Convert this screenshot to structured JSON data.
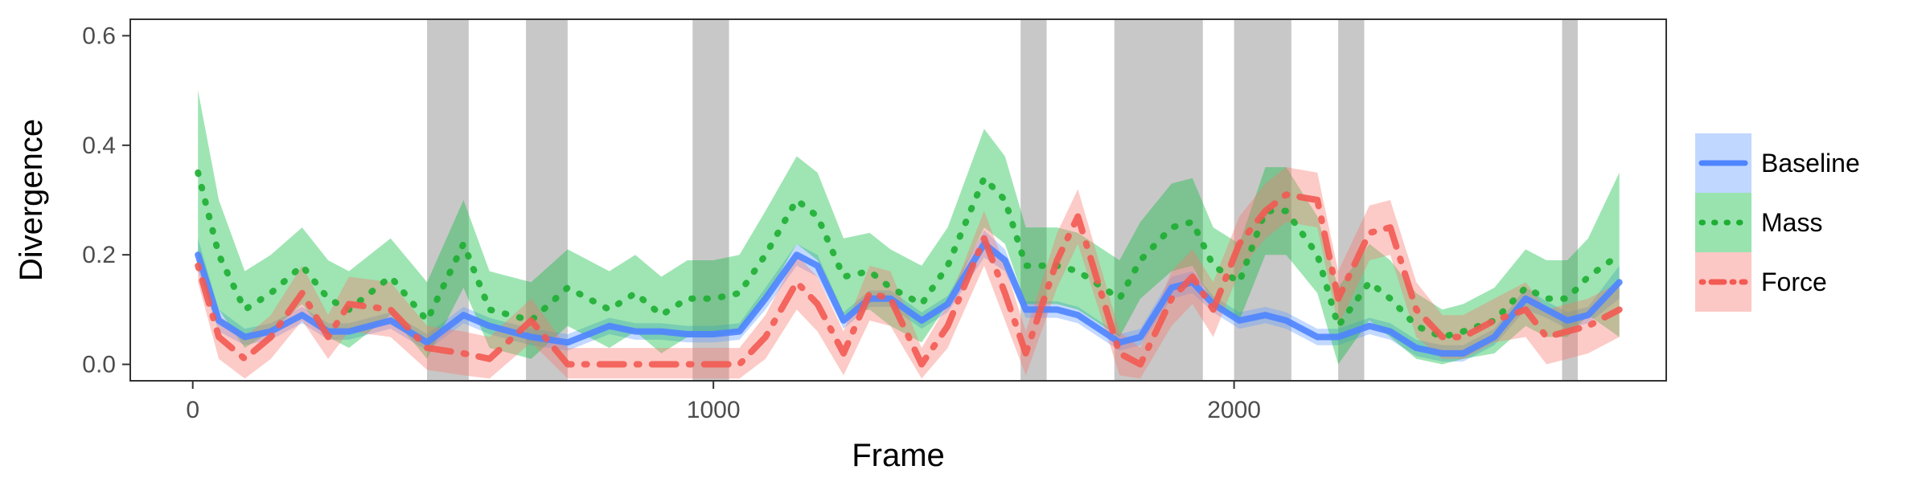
{
  "chart_data": {
    "type": "line",
    "title": "",
    "xlabel": "Frame",
    "ylabel": "Divergence",
    "xlim": [
      -120,
      2830
    ],
    "ylim": [
      -0.03,
      0.63
    ],
    "x_ticks": [
      0,
      1000,
      2000
    ],
    "x_tick_labels": [
      "0",
      "1000",
      "2000"
    ],
    "y_ticks": [
      0.0,
      0.2,
      0.4,
      0.6
    ],
    "y_tick_labels": [
      "0.0",
      "0.2",
      "0.4",
      "0.6"
    ],
    "grid": false,
    "legend": {
      "position": "right"
    },
    "shaded_regions": [
      [
        450,
        530
      ],
      [
        640,
        720
      ],
      [
        960,
        1030
      ],
      [
        1590,
        1640
      ],
      [
        1770,
        1940
      ],
      [
        2000,
        2110
      ],
      [
        2200,
        2250
      ],
      [
        2630,
        2660
      ]
    ],
    "series": [
      {
        "name": "Baseline",
        "color": "#619CFF",
        "line_color": "#4E84FF",
        "dash": "solid",
        "x": [
          10,
          50,
          100,
          150,
          210,
          260,
          300,
          380,
          450,
          520,
          570,
          650,
          720,
          800,
          850,
          900,
          950,
          1000,
          1050,
          1100,
          1160,
          1200,
          1250,
          1300,
          1340,
          1400,
          1450,
          1520,
          1560,
          1600,
          1660,
          1700,
          1780,
          1820,
          1880,
          1920,
          1960,
          2010,
          2060,
          2100,
          2160,
          2200,
          2260,
          2300,
          2350,
          2400,
          2440,
          2500,
          2560,
          2600,
          2640,
          2680,
          2740
        ],
        "y": [
          0.2,
          0.08,
          0.05,
          0.06,
          0.09,
          0.06,
          0.06,
          0.08,
          0.04,
          0.09,
          0.07,
          0.05,
          0.04,
          0.07,
          0.06,
          0.06,
          0.055,
          0.055,
          0.06,
          0.12,
          0.2,
          0.18,
          0.08,
          0.12,
          0.12,
          0.08,
          0.11,
          0.22,
          0.19,
          0.1,
          0.1,
          0.09,
          0.04,
          0.05,
          0.14,
          0.15,
          0.11,
          0.08,
          0.09,
          0.08,
          0.05,
          0.05,
          0.07,
          0.06,
          0.03,
          0.02,
          0.02,
          0.05,
          0.12,
          0.1,
          0.08,
          0.09,
          0.15
        ],
        "band": [
          0.03,
          0.02,
          0.015,
          0.015,
          0.015,
          0.015,
          0.015,
          0.015,
          0.015,
          0.015,
          0.015,
          0.015,
          0.015,
          0.015,
          0.015,
          0.015,
          0.015,
          0.015,
          0.015,
          0.02,
          0.02,
          0.02,
          0.015,
          0.015,
          0.015,
          0.015,
          0.015,
          0.025,
          0.02,
          0.015,
          0.015,
          0.015,
          0.015,
          0.015,
          0.02,
          0.02,
          0.015,
          0.015,
          0.015,
          0.015,
          0.015,
          0.015,
          0.015,
          0.015,
          0.015,
          0.015,
          0.015,
          0.015,
          0.02,
          0.015,
          0.015,
          0.015,
          0.03
        ]
      },
      {
        "name": "Mass",
        "color": "#00BA38",
        "line_color": "#1DAE32",
        "dash": "dotted",
        "x": [
          10,
          50,
          100,
          150,
          210,
          260,
          300,
          380,
          450,
          520,
          570,
          650,
          720,
          800,
          850,
          900,
          950,
          1000,
          1050,
          1100,
          1160,
          1200,
          1250,
          1300,
          1340,
          1400,
          1450,
          1520,
          1560,
          1600,
          1660,
          1700,
          1780,
          1820,
          1880,
          1920,
          1960,
          2010,
          2060,
          2100,
          2160,
          2200,
          2260,
          2300,
          2350,
          2400,
          2440,
          2500,
          2560,
          2600,
          2640,
          2680,
          2740
        ],
        "y": [
          0.35,
          0.2,
          0.1,
          0.13,
          0.18,
          0.12,
          0.1,
          0.16,
          0.08,
          0.22,
          0.1,
          0.08,
          0.14,
          0.1,
          0.13,
          0.09,
          0.12,
          0.12,
          0.13,
          0.2,
          0.3,
          0.27,
          0.16,
          0.17,
          0.14,
          0.11,
          0.18,
          0.34,
          0.3,
          0.18,
          0.18,
          0.17,
          0.12,
          0.19,
          0.25,
          0.26,
          0.18,
          0.15,
          0.28,
          0.28,
          0.2,
          0.07,
          0.15,
          0.12,
          0.07,
          0.05,
          0.06,
          0.08,
          0.14,
          0.12,
          0.12,
          0.16,
          0.2
        ],
        "band": [
          0.15,
          0.1,
          0.07,
          0.07,
          0.07,
          0.07,
          0.07,
          0.07,
          0.07,
          0.08,
          0.07,
          0.07,
          0.07,
          0.07,
          0.07,
          0.07,
          0.07,
          0.07,
          0.07,
          0.08,
          0.08,
          0.08,
          0.07,
          0.07,
          0.07,
          0.07,
          0.07,
          0.09,
          0.08,
          0.07,
          0.07,
          0.07,
          0.07,
          0.07,
          0.08,
          0.08,
          0.07,
          0.07,
          0.08,
          0.08,
          0.07,
          0.07,
          0.07,
          0.07,
          0.06,
          0.05,
          0.05,
          0.06,
          0.07,
          0.07,
          0.07,
          0.07,
          0.15
        ]
      },
      {
        "name": "Force",
        "color": "#F8766D",
        "line_color": "#F25A52",
        "dash": "dotdash",
        "x": [
          10,
          50,
          100,
          150,
          210,
          260,
          300,
          380,
          450,
          520,
          570,
          650,
          720,
          800,
          850,
          900,
          950,
          1000,
          1050,
          1100,
          1160,
          1200,
          1250,
          1300,
          1340,
          1400,
          1450,
          1520,
          1560,
          1600,
          1660,
          1700,
          1780,
          1820,
          1880,
          1920,
          1960,
          2010,
          2060,
          2100,
          2160,
          2200,
          2260,
          2300,
          2350,
          2400,
          2440,
          2500,
          2560,
          2600,
          2640,
          2680,
          2740
        ],
        "y": [
          0.18,
          0.05,
          0.01,
          0.05,
          0.13,
          0.05,
          0.11,
          0.1,
          0.03,
          0.02,
          0.01,
          0.08,
          0.0,
          0.0,
          0.0,
          0.0,
          0.0,
          0.0,
          0.0,
          0.05,
          0.15,
          0.11,
          0.02,
          0.13,
          0.12,
          0.0,
          0.07,
          0.23,
          0.13,
          0.02,
          0.19,
          0.27,
          0.02,
          0.0,
          0.12,
          0.16,
          0.1,
          0.22,
          0.28,
          0.31,
          0.3,
          0.12,
          0.24,
          0.25,
          0.1,
          0.05,
          0.05,
          0.08,
          0.1,
          0.05,
          0.06,
          0.07,
          0.1
        ],
        "band": [
          0.03,
          0.04,
          0.04,
          0.04,
          0.05,
          0.04,
          0.05,
          0.05,
          0.04,
          0.04,
          0.04,
          0.04,
          0.03,
          0.03,
          0.03,
          0.03,
          0.03,
          0.03,
          0.03,
          0.04,
          0.05,
          0.05,
          0.04,
          0.05,
          0.05,
          0.03,
          0.04,
          0.05,
          0.05,
          0.04,
          0.05,
          0.05,
          0.04,
          0.03,
          0.05,
          0.05,
          0.05,
          0.05,
          0.05,
          0.05,
          0.05,
          0.05,
          0.05,
          0.05,
          0.05,
          0.04,
          0.04,
          0.04,
          0.05,
          0.05,
          0.05,
          0.05,
          0.05
        ]
      }
    ]
  }
}
